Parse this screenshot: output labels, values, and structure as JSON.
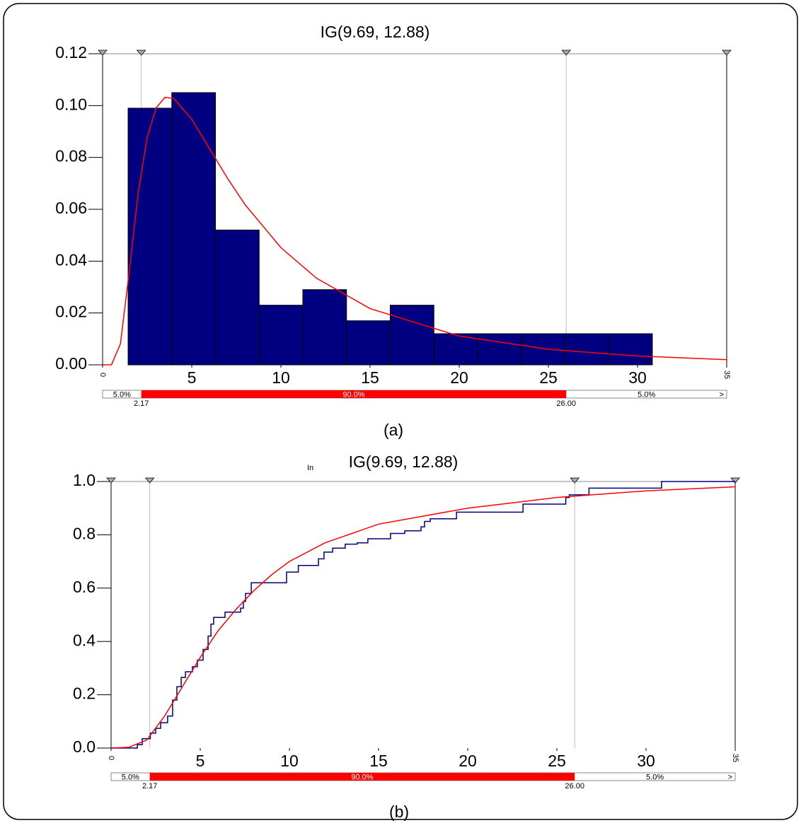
{
  "chart_data": [
    {
      "type": "histogram",
      "title": "IG(9.69, 12.88)",
      "caption": "(a)",
      "bins": [
        1.43,
        3.88,
        6.33,
        8.78,
        11.23,
        13.68,
        16.13,
        18.58,
        21.03,
        23.48,
        25.93,
        28.38,
        30.83
      ],
      "values": [
        0.099,
        0.105,
        0.052,
        0.023,
        0.029,
        0.017,
        0.023,
        0.012,
        0.012,
        0.012,
        0.012,
        0.012
      ],
      "color": "#000080",
      "fit": {
        "color": "#ff0000",
        "x": [
          0,
          0.5,
          1,
          1.5,
          2,
          2.5,
          3,
          3.5,
          4,
          5,
          6,
          7,
          8,
          10,
          12,
          15,
          20,
          25,
          30,
          35
        ],
        "values": [
          0,
          4e-05,
          0.0081,
          0.0363,
          0.0666,
          0.0877,
          0.0991,
          0.1032,
          0.1027,
          0.0947,
          0.0834,
          0.072,
          0.0617,
          0.0452,
          0.0334,
          0.0217,
          0.0111,
          0.006,
          0.0034,
          0.002
        ]
      },
      "xlim": [
        0,
        35
      ],
      "xticks": [
        0,
        5,
        10,
        15,
        20,
        25,
        30,
        35
      ],
      "ylim": [
        0,
        0.12
      ],
      "yticks": [
        {
          "value": 0,
          "label": "0.00"
        },
        0.02,
        0.04,
        0.06,
        0.08,
        {
          "value": 0.1,
          "label": "0.10"
        },
        0.12
      ],
      "percentile_bar": {
        "labels": [
          "5.0%",
          "90.0%",
          "5.0%"
        ],
        "end_label": ">",
        "color": "#ff0000",
        "markers": [
          2.17,
          {
            "value": 26,
            "label": "26.00"
          }
        ]
      }
    },
    {
      "type": "line",
      "title": "IG(9.69, 12.88)",
      "caption": "(b)",
      "annotation": "In",
      "series": [
        {
          "color": "#000080",
          "step": true,
          "x": [
            0,
            1.47,
            1.75,
            2.2,
            2.5,
            2.78,
            3.17,
            3.45,
            3.69,
            3.93,
            4.17,
            4.56,
            4.84,
            5.16,
            5.44,
            5.6,
            5.75,
            6.39,
            7.26,
            7.42,
            7.54,
            7.86,
            9.84,
            10.5,
            11.63,
            11.94,
            12.42,
            13.13,
            13.8,
            14.4,
            15.67,
            16.47,
            17.38,
            17.58,
            17.9,
            19.37,
            23.1,
            25.5,
            25.7,
            26.8,
            30.87,
            35
          ],
          "values": [
            0,
            0.013,
            0.035,
            0.056,
            0.074,
            0.095,
            0.12,
            0.18,
            0.23,
            0.265,
            0.286,
            0.305,
            0.33,
            0.37,
            0.42,
            0.465,
            0.49,
            0.51,
            0.525,
            0.55,
            0.58,
            0.62,
            0.66,
            0.685,
            0.71,
            0.735,
            0.75,
            0.765,
            0.77,
            0.785,
            0.805,
            0.815,
            0.83,
            0.85,
            0.86,
            0.885,
            0.915,
            0.94,
            0.95,
            0.975,
            1.0,
            1.0
          ]
        },
        {
          "color": "#ff0000",
          "x": [
            0,
            1,
            2,
            3,
            4,
            5,
            6,
            7,
            8,
            9,
            10,
            12,
            15,
            20,
            25,
            30,
            35
          ],
          "values": [
            0,
            0.003,
            0.03,
            0.12,
            0.23,
            0.34,
            0.44,
            0.52,
            0.59,
            0.65,
            0.7,
            0.77,
            0.84,
            0.9,
            0.94,
            0.965,
            0.98
          ]
        }
      ],
      "xlim": [
        0,
        35
      ],
      "xticks": [
        0,
        5,
        10,
        15,
        20,
        25,
        30,
        35
      ],
      "ylim": [
        0,
        1
      ],
      "yticks": [
        {
          "value": 0,
          "label": "0.0"
        },
        0.2,
        0.4,
        0.6,
        0.8,
        {
          "value": 1,
          "label": "1.0"
        }
      ],
      "percentile_bar": {
        "labels": [
          "5.0%",
          "90.0%",
          "5.0%"
        ],
        "end_label": ">",
        "color": "#ff0000",
        "markers": [
          2.17,
          {
            "value": 26,
            "label": "26.00"
          }
        ]
      }
    }
  ]
}
